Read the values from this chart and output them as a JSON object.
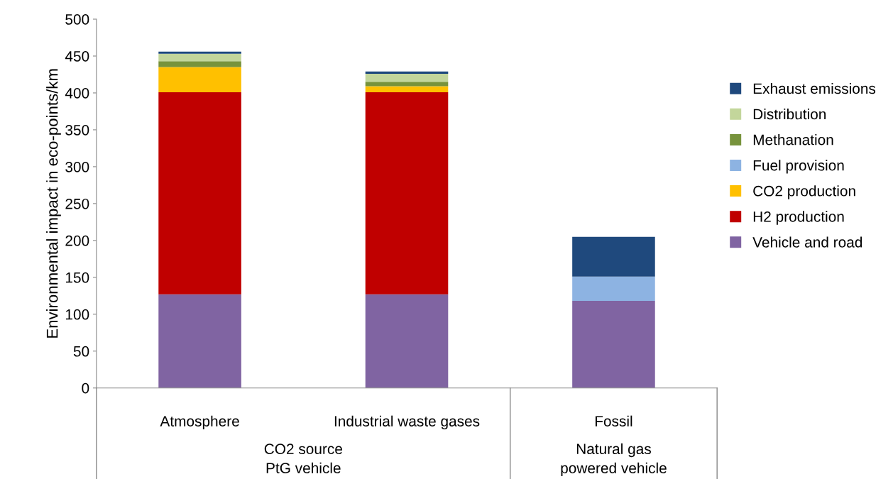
{
  "chart_data": {
    "type": "bar",
    "stacked": true,
    "ylabel": "Environmental impact in eco-points/km",
    "categories": [
      "Atmosphere",
      "Industrial waste gases",
      "Fossil"
    ],
    "series": [
      {
        "name": "Vehicle and road",
        "color": "#8064a2",
        "values": [
          127,
          127,
          118
        ]
      },
      {
        "name": "H2 production",
        "color": "#c00000",
        "values": [
          274,
          274,
          0
        ]
      },
      {
        "name": "CO2 production",
        "color": "#ffc000",
        "values": [
          34,
          8,
          0
        ]
      },
      {
        "name": "Fuel provision",
        "color": "#8db3e2",
        "values": [
          0,
          0,
          33
        ]
      },
      {
        "name": "Methanation",
        "color": "#77933c",
        "values": [
          8,
          6,
          0
        ]
      },
      {
        "name": "Distribution",
        "color": "#c3d69b",
        "values": [
          10,
          11,
          0
        ]
      },
      {
        "name": "Exhaust emissions",
        "color": "#1f497d",
        "values": [
          3,
          3,
          54
        ]
      }
    ],
    "ylim": [
      0,
      500
    ],
    "yticks": [
      0,
      50,
      100,
      150,
      200,
      250,
      300,
      350,
      400,
      450,
      500
    ],
    "annotations": [
      "CO2 source\nPtG vehicle",
      "Natural gas\npowered vehicle"
    ],
    "grid": false,
    "legend": "right"
  }
}
